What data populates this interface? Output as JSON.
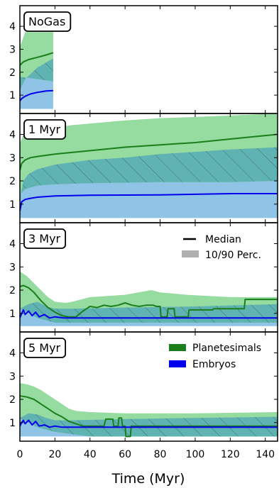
{
  "chart_data": {
    "type": "line",
    "xlabel": "Time (Myr)",
    "xlim": [
      0,
      147
    ],
    "xticks": [
      "0",
      "20",
      "40",
      "60",
      "80",
      "100",
      "120",
      "140"
    ],
    "ylim": [
      0.2,
      4.9
    ],
    "yticks": [
      "1",
      "2",
      "3",
      "4"
    ],
    "colors": {
      "planetesimals_line": "#1a7f1a",
      "planetesimals_band": "#96dba0",
      "embryos_line": "#0000ee",
      "embryos_band": "#8fc4e6",
      "overlap_band": "#5fb3b3",
      "hatch": "#333333"
    },
    "legend_top": {
      "position": "top-right",
      "entries": [
        {
          "label": "Median",
          "style": "black-line"
        },
        {
          "label": "10/90 Perc.",
          "style": "gray-patch"
        }
      ]
    },
    "legend_bottom": {
      "position": "top-right",
      "entries": [
        {
          "label": "Planetesimals",
          "color": "#1a7f1a"
        },
        {
          "label": "Embryos",
          "color": "#0000ee"
        }
      ]
    },
    "panels": [
      {
        "label": "NoGas",
        "series": [
          {
            "name": "Planetesimals",
            "median": [
              [
                0,
                2.3
              ],
              [
                2,
                2.45
              ],
              [
                5,
                2.55
              ],
              [
                10,
                2.65
              ],
              [
                15,
                2.75
              ],
              [
                19,
                2.85
              ]
            ],
            "p10": [
              [
                0,
                1.8
              ],
              [
                5,
                1.75
              ],
              [
                10,
                1.7
              ],
              [
                19,
                1.6
              ]
            ],
            "p90": [
              [
                0,
                3.1
              ],
              [
                3,
                3.75
              ],
              [
                19,
                3.75
              ]
            ]
          },
          {
            "name": "Embryos",
            "median": [
              [
                0,
                0.75
              ],
              [
                1,
                0.85
              ],
              [
                3,
                0.95
              ],
              [
                6,
                1.05
              ],
              [
                10,
                1.12
              ],
              [
                15,
                1.18
              ],
              [
                19,
                1.2
              ]
            ],
            "p10": [
              [
                0,
                0.4
              ],
              [
                19,
                0.4
              ]
            ],
            "p90": [
              [
                0,
                1.2
              ],
              [
                3,
                1.7
              ],
              [
                10,
                2.2
              ],
              [
                19,
                2.6
              ]
            ]
          }
        ]
      },
      {
        "label": "1 Myr",
        "series": [
          {
            "name": "Planetesimals",
            "median": [
              [
                0,
                2.45
              ],
              [
                1,
                2.75
              ],
              [
                3,
                2.9
              ],
              [
                6,
                3.0
              ],
              [
                10,
                3.05
              ],
              [
                20,
                3.15
              ],
              [
                40,
                3.3
              ],
              [
                60,
                3.45
              ],
              [
                80,
                3.55
              ],
              [
                100,
                3.65
              ],
              [
                120,
                3.8
              ],
              [
                140,
                3.95
              ],
              [
                147,
                4.0
              ]
            ],
            "p10": [
              [
                0,
                1.4
              ],
              [
                3,
                1.65
              ],
              [
                10,
                1.8
              ],
              [
                20,
                1.85
              ],
              [
                40,
                1.9
              ],
              [
                80,
                1.95
              ],
              [
                120,
                1.95
              ],
              [
                147,
                2.0
              ]
            ],
            "p90": [
              [
                0,
                3.6
              ],
              [
                2,
                4.0
              ],
              [
                10,
                4.2
              ],
              [
                30,
                4.4
              ],
              [
                60,
                4.6
              ],
              [
                80,
                4.7
              ],
              [
                100,
                4.75
              ],
              [
                147,
                4.9
              ]
            ]
          },
          {
            "name": "Embryos",
            "median": [
              [
                0,
                0.7
              ],
              [
                1,
                1.1
              ],
              [
                3,
                1.2
              ],
              [
                6,
                1.25
              ],
              [
                10,
                1.3
              ],
              [
                20,
                1.35
              ],
              [
                40,
                1.38
              ],
              [
                80,
                1.4
              ],
              [
                120,
                1.45
              ],
              [
                147,
                1.45
              ]
            ],
            "p10": [
              [
                0,
                0.4
              ],
              [
                147,
                0.4
              ]
            ],
            "p90": [
              [
                0,
                1.2
              ],
              [
                2,
                2.0
              ],
              [
                5,
                2.3
              ],
              [
                10,
                2.5
              ],
              [
                20,
                2.7
              ],
              [
                40,
                2.9
              ],
              [
                60,
                3.0
              ],
              [
                80,
                3.15
              ],
              [
                100,
                3.25
              ],
              [
                120,
                3.35
              ],
              [
                147,
                3.45
              ]
            ]
          }
        ]
      },
      {
        "label": "3 Myr",
        "series": [
          {
            "name": "Planetesimals",
            "median": [
              [
                0,
                2.15
              ],
              [
                2,
                2.2
              ],
              [
                5,
                2.1
              ],
              [
                8,
                1.9
              ],
              [
                12,
                1.55
              ],
              [
                16,
                1.25
              ],
              [
                20,
                1.05
              ],
              [
                24,
                0.9
              ],
              [
                28,
                0.85
              ],
              [
                32,
                0.85
              ],
              [
                36,
                1.1
              ],
              [
                40,
                1.3
              ],
              [
                44,
                1.25
              ],
              [
                48,
                1.35
              ],
              [
                52,
                1.3
              ],
              [
                56,
                1.35
              ],
              [
                60,
                1.45
              ],
              [
                64,
                1.35
              ],
              [
                68,
                1.3
              ],
              [
                72,
                1.35
              ],
              [
                76,
                1.35
              ],
              [
                78,
                1.3
              ],
              [
                80,
                1.3
              ],
              [
                80.5,
                0.85
              ],
              [
                84,
                0.85
              ],
              [
                84.5,
                1.2
              ],
              [
                88,
                1.2
              ],
              [
                88.5,
                0.85
              ],
              [
                96,
                0.85
              ],
              [
                96.5,
                1.15
              ],
              [
                110,
                1.15
              ],
              [
                110.5,
                1.2
              ],
              [
                128,
                1.2
              ],
              [
                128.5,
                1.6
              ],
              [
                147,
                1.6
              ]
            ],
            "p10": [
              [
                0,
                1.2
              ],
              [
                5,
                1.0
              ],
              [
                10,
                0.8
              ],
              [
                20,
                0.6
              ],
              [
                40,
                0.6
              ],
              [
                147,
                0.6
              ]
            ],
            "p90": [
              [
                0,
                2.8
              ],
              [
                4,
                2.6
              ],
              [
                8,
                2.3
              ],
              [
                12,
                2.0
              ],
              [
                16,
                1.7
              ],
              [
                20,
                1.5
              ],
              [
                26,
                1.45
              ],
              [
                30,
                1.5
              ],
              [
                40,
                1.7
              ],
              [
                60,
                1.8
              ],
              [
                75,
                2.0
              ],
              [
                80,
                1.9
              ],
              [
                95,
                1.8
              ],
              [
                120,
                1.7
              ],
              [
                147,
                1.7
              ]
            ]
          },
          {
            "name": "Embryos",
            "median": [
              [
                0,
                0.8
              ],
              [
                1,
                1.0
              ],
              [
                2,
                1.15
              ],
              [
                3,
                0.95
              ],
              [
                5,
                1.1
              ],
              [
                7,
                0.9
              ],
              [
                9,
                1.05
              ],
              [
                11,
                0.85
              ],
              [
                14,
                0.95
              ],
              [
                17,
                0.8
              ],
              [
                20,
                0.85
              ],
              [
                25,
                0.8
              ],
              [
                30,
                0.8
              ],
              [
                60,
                0.8
              ],
              [
                100,
                0.8
              ],
              [
                147,
                0.8
              ]
            ],
            "p10": [
              [
                0,
                0.45
              ],
              [
                147,
                0.45
              ]
            ],
            "p90": [
              [
                0,
                1.2
              ],
              [
                5,
                1.4
              ],
              [
                10,
                1.5
              ],
              [
                15,
                1.3
              ],
              [
                20,
                1.2
              ],
              [
                30,
                1.2
              ],
              [
                60,
                1.25
              ],
              [
                100,
                1.3
              ],
              [
                147,
                1.4
              ]
            ]
          }
        ]
      },
      {
        "label": "5 Myr",
        "series": [
          {
            "name": "Planetesimals",
            "median": [
              [
                0,
                2.15
              ],
              [
                4,
                2.1
              ],
              [
                8,
                2.0
              ],
              [
                12,
                1.8
              ],
              [
                16,
                1.6
              ],
              [
                20,
                1.4
              ],
              [
                24,
                1.25
              ],
              [
                28,
                1.05
              ],
              [
                32,
                0.95
              ],
              [
                36,
                0.85
              ],
              [
                40,
                0.85
              ],
              [
                44,
                0.85
              ],
              [
                48,
                0.85
              ],
              [
                49,
                1.15
              ],
              [
                53,
                1.15
              ],
              [
                53.5,
                0.85
              ],
              [
                56,
                0.85
              ],
              [
                56.5,
                1.2
              ],
              [
                58,
                1.2
              ],
              [
                58.5,
                0.85
              ],
              [
                60,
                0.85
              ],
              [
                60.5,
                0.4
              ],
              [
                63,
                0.4
              ],
              [
                63.5,
                0.85
              ],
              [
                100,
                0.85
              ],
              [
                147,
                0.85
              ]
            ],
            "p10": [
              [
                0,
                1.2
              ],
              [
                5,
                1.0
              ],
              [
                10,
                0.8
              ],
              [
                20,
                0.6
              ],
              [
                40,
                0.4
              ],
              [
                147,
                0.4
              ]
            ],
            "p90": [
              [
                0,
                2.7
              ],
              [
                4,
                2.65
              ],
              [
                8,
                2.55
              ],
              [
                12,
                2.4
              ],
              [
                16,
                2.2
              ],
              [
                20,
                2.0
              ],
              [
                24,
                1.8
              ],
              [
                28,
                1.6
              ],
              [
                32,
                1.5
              ],
              [
                40,
                1.45
              ],
              [
                60,
                1.4
              ],
              [
                100,
                1.4
              ],
              [
                147,
                1.45
              ]
            ]
          },
          {
            "name": "Embryos",
            "median": [
              [
                0,
                0.85
              ],
              [
                1,
                1.0
              ],
              [
                2,
                1.1
              ],
              [
                3,
                0.95
              ],
              [
                5,
                1.1
              ],
              [
                7,
                0.9
              ],
              [
                9,
                1.05
              ],
              [
                11,
                0.85
              ],
              [
                14,
                0.9
              ],
              [
                17,
                0.8
              ],
              [
                20,
                0.85
              ],
              [
                24,
                0.8
              ],
              [
                28,
                0.8
              ],
              [
                32,
                0.8
              ],
              [
                60,
                0.8
              ],
              [
                100,
                0.8
              ],
              [
                147,
                0.8
              ]
            ],
            "p10": [
              [
                0,
                0.4
              ],
              [
                147,
                0.4
              ]
            ],
            "p90": [
              [
                0,
                1.2
              ],
              [
                5,
                1.4
              ],
              [
                10,
                1.35
              ],
              [
                15,
                1.2
              ],
              [
                20,
                1.1
              ],
              [
                30,
                1.1
              ],
              [
                60,
                1.15
              ],
              [
                100,
                1.2
              ],
              [
                147,
                1.25
              ]
            ]
          }
        ]
      }
    ]
  }
}
